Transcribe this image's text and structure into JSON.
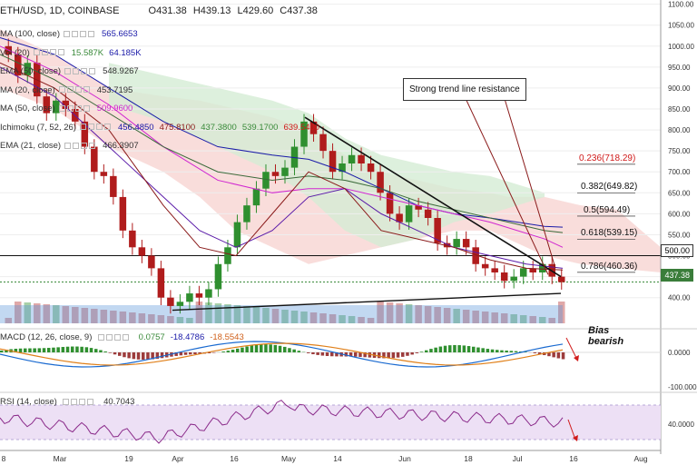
{
  "header": {
    "symbol": "ETH/USD, 1D, COINBASE",
    "open": "O431.38",
    "high": "H439.13",
    "low": "L429.60",
    "close": "C437.38"
  },
  "indicators": [
    {
      "label": "MA (100, close)",
      "values": [
        "565.6653"
      ],
      "colors": [
        "#1a1aa8"
      ]
    },
    {
      "label": "Vol (20)",
      "values": [
        "15.587K",
        "64.185K"
      ],
      "colors": [
        "#3a8a3a",
        "#1a1aa8"
      ]
    },
    {
      "label": "EMA (50, close)",
      "values": [
        "548.9267"
      ],
      "colors": [
        "#333333"
      ]
    },
    {
      "label": "MA (20, close)",
      "values": [
        "453.7195"
      ],
      "colors": [
        "#333333"
      ]
    },
    {
      "label": "MA (50, close)",
      "values": [
        "509.9600"
      ],
      "colors": [
        "#d026d0"
      ]
    },
    {
      "label": "Ichimoku (7, 52, 26)",
      "values": [
        "456.4850",
        "475.8100",
        "437.3800",
        "539.1700",
        "639.5400"
      ],
      "colors": [
        "#1a1aa8",
        "#8a1a1a",
        "#3a8a3a",
        "#3a8a3a",
        "#d01a1a"
      ]
    },
    {
      "label": "EMA (21, close)",
      "values": [
        "466.3907"
      ],
      "colors": [
        "#333333"
      ]
    }
  ],
  "annotations": {
    "trend": "Strong trend line resistance",
    "bias_line1": "Bias",
    "bias_line2": "bearish"
  },
  "fib_levels": [
    {
      "label": "0.236(718.29)",
      "value": 718.29,
      "color": "#d01a1a"
    },
    {
      "label": "0.382(649.82)",
      "value": 649.82,
      "color": "#111111"
    },
    {
      "label": "0.5(594.49)",
      "value": 594.49,
      "color": "#111111"
    },
    {
      "label": "0.618(539.15)",
      "value": 539.15,
      "color": "#111111"
    },
    {
      "label": "0.786(460.36)",
      "value": 460.36,
      "color": "#111111"
    }
  ],
  "price_labels": {
    "level": "500.00",
    "last": "437.38"
  },
  "macd": {
    "label": "MACD (12, 26, close, 9)",
    "values": [
      "0.0757",
      "-18.4786",
      "-18.5543"
    ],
    "colors": [
      "#3a8a3a",
      "#1a1aa8",
      "#d0601a"
    ]
  },
  "rsi": {
    "label": "RSI (14, close)",
    "value": "40.7043",
    "color": "#8a2a8a"
  },
  "chart_data": {
    "type": "candlestick",
    "price_axis": {
      "ticks": [
        "1100.00",
        "1050.00",
        "1000.00",
        "950.00",
        "900.00",
        "850.00",
        "800.00",
        "750.00",
        "700.00",
        "650.00",
        "600.00",
        "550.00",
        "500.00",
        "450.00",
        "400.00"
      ],
      "range": [
        330,
        1110
      ]
    },
    "macd_axis": {
      "ticks": [
        "0.0000",
        "-100.0000"
      ]
    },
    "rsi_axis": {
      "ticks": [
        "40.0000"
      ]
    },
    "x_ticks": [
      "8",
      "Mar",
      "19",
      "Apr",
      "16",
      "May",
      "14",
      "Jun",
      "18",
      "Jul",
      "16",
      "Aug"
    ],
    "close_series": [
      980,
      930,
      960,
      880,
      840,
      870,
      850,
      820,
      760,
      700,
      690,
      640,
      560,
      520,
      500,
      470,
      400,
      380,
      390,
      410,
      400,
      420,
      480,
      520,
      580,
      620,
      660,
      700,
      690,
      710,
      760,
      820,
      790,
      750,
      700,
      720,
      740,
      720,
      700,
      650,
      600,
      580,
      620,
      610,
      590,
      530,
      520,
      540,
      520,
      480,
      470,
      460,
      440,
      450,
      470,
      460,
      480,
      450,
      437
    ]
  }
}
